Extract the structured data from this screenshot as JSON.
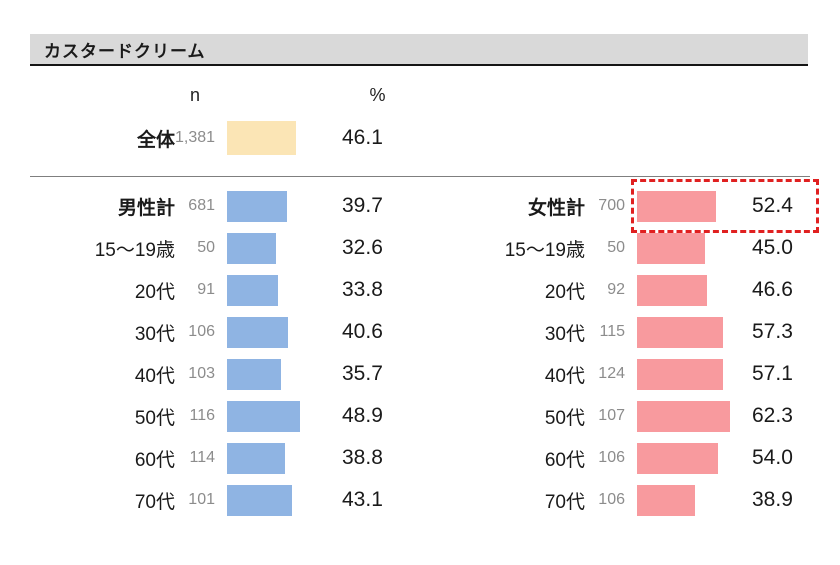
{
  "title": "カスタードクリーム",
  "headers": {
    "n": "n",
    "pct": "%"
  },
  "colors": {
    "title_bg": "#d9d9d9",
    "total_bar": "#fbe5b5",
    "male_bar": "#8fb4e3",
    "female_bar": "#f89a9e",
    "n_text": "#8c8c8c",
    "highlight": "#e02020"
  },
  "chart_data": {
    "type": "bar",
    "title": "カスタードクリーム",
    "unit": "%",
    "axis_max": 70,
    "legend_position": "none",
    "total": {
      "label": "全体",
      "n": "1,381",
      "pct": 46.1
    },
    "male": {
      "rows": [
        {
          "label": "男性計",
          "n": "681",
          "pct": 39.7,
          "bold": true
        },
        {
          "label": "15〜19歳",
          "n": "50",
          "pct": 32.6
        },
        {
          "label": "20代",
          "n": "91",
          "pct": 33.8
        },
        {
          "label": "30代",
          "n": "106",
          "pct": 40.6
        },
        {
          "label": "40代",
          "n": "103",
          "pct": 35.7
        },
        {
          "label": "50代",
          "n": "116",
          "pct": 48.9
        },
        {
          "label": "60代",
          "n": "114",
          "pct": 38.8
        },
        {
          "label": "70代",
          "n": "101",
          "pct": 43.1
        }
      ]
    },
    "female": {
      "rows": [
        {
          "label": "女性計",
          "n": "700",
          "pct": 52.4,
          "bold": true,
          "highlighted": true
        },
        {
          "label": "15〜19歳",
          "n": "50",
          "pct": 45.0
        },
        {
          "label": "20代",
          "n": "92",
          "pct": 46.6
        },
        {
          "label": "30代",
          "n": "115",
          "pct": 57.3
        },
        {
          "label": "40代",
          "n": "124",
          "pct": 57.1
        },
        {
          "label": "50代",
          "n": "107",
          "pct": 62.3
        },
        {
          "label": "60代",
          "n": "106",
          "pct": 54.0
        },
        {
          "label": "70代",
          "n": "106",
          "pct": 38.9
        }
      ]
    }
  }
}
